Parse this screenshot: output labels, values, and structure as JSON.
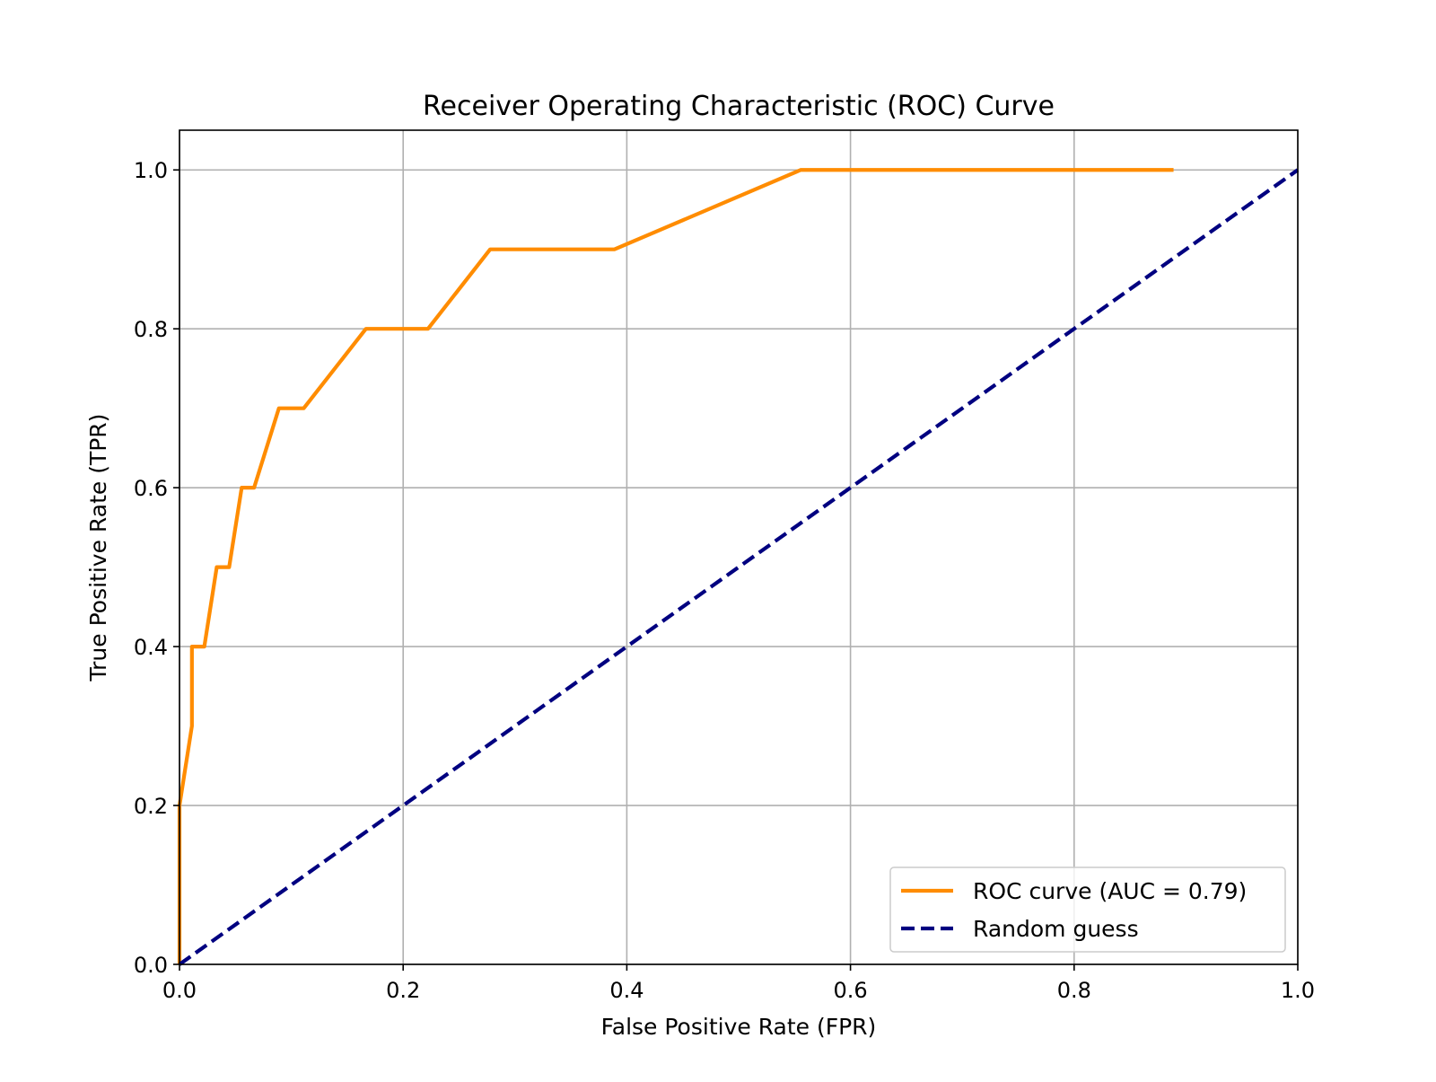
{
  "chart_data": {
    "type": "line",
    "title": "Receiver Operating Characteristic (ROC) Curve",
    "xlabel": "False Positive Rate (FPR)",
    "ylabel": "True Positive Rate (TPR)",
    "xlim": [
      0.0,
      1.0
    ],
    "ylim": [
      0.0,
      1.05
    ],
    "xticks": [
      "0.0",
      "0.2",
      "0.4",
      "0.6",
      "0.8",
      "1.0"
    ],
    "yticks": [
      "0.0",
      "0.2",
      "0.4",
      "0.6",
      "0.8",
      "1.0"
    ],
    "grid": true,
    "legend_position": "lower-right",
    "series": [
      {
        "name": "ROC curve (AUC = 0.79)",
        "color": "#ff8c00",
        "style": "solid",
        "x": [
          0.0,
          0.0,
          0.0111,
          0.0111,
          0.0222,
          0.0333,
          0.0444,
          0.0556,
          0.0667,
          0.0889,
          0.1111,
          0.1667,
          0.2222,
          0.2778,
          0.3889,
          0.5556,
          0.8889
        ],
        "y": [
          0.0,
          0.2,
          0.3,
          0.4,
          0.4,
          0.5,
          0.5,
          0.6,
          0.6,
          0.7,
          0.7,
          0.8,
          0.8,
          0.9,
          0.9,
          1.0,
          1.0
        ]
      },
      {
        "name": "Random guess",
        "color": "#000080",
        "style": "dashed",
        "x": [
          0.0,
          1.0
        ],
        "y": [
          0.0,
          1.0
        ]
      }
    ]
  }
}
